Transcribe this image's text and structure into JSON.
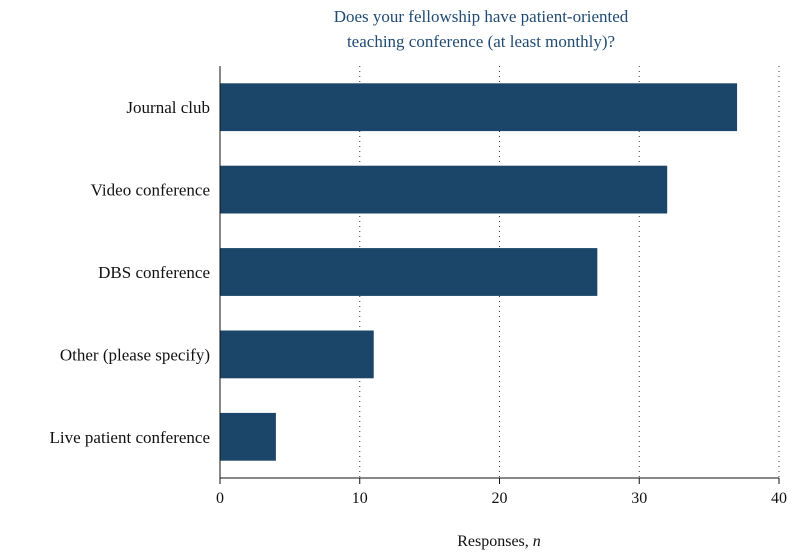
{
  "chart_data": {
    "type": "bar",
    "orientation": "horizontal",
    "title": "Does your fellowship have patient-oriented teaching conference (at least monthly)?",
    "title_lines": [
      "Does your fellowship have patient-oriented",
      "teaching conference (at least monthly)?"
    ],
    "categories": [
      "Journal club",
      "Video conference",
      "DBS conference",
      "Other (please specify)",
      "Live patient conference"
    ],
    "values": [
      37,
      32,
      27,
      11,
      4
    ],
    "xlabel": "Responses, n",
    "xlabel_main": "Responses, ",
    "xlabel_italic": "n",
    "ylabel": "",
    "xlim": [
      0,
      40
    ],
    "xticks": [
      0,
      10,
      20,
      30,
      40
    ],
    "xtick_labels": [
      "0",
      "10",
      "20",
      "30",
      "40"
    ],
    "grid": "vertical dotted",
    "legend": "none",
    "bar_color": "#1b4669",
    "title_color": "#1f4a73"
  }
}
